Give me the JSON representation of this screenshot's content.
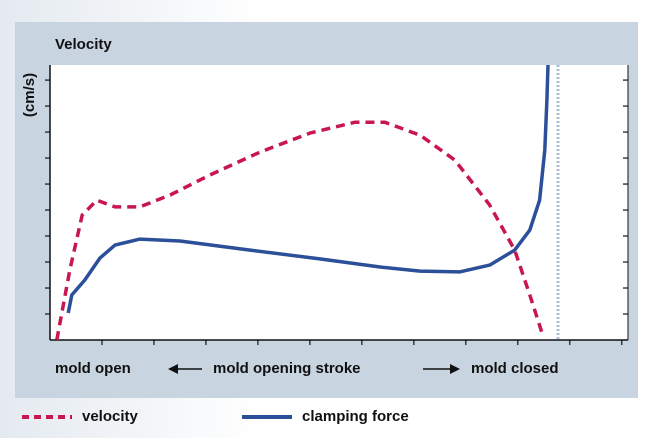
{
  "chart_data": {
    "type": "line",
    "ylabel_title": "Velocity",
    "ylabel": "(cm/s)",
    "xlabel_left": "mold open",
    "xlabel_center": "mold opening stroke",
    "xlabel_right": "mold closed",
    "xlim": [
      0,
      11.12
    ],
    "ylim": [
      0,
      10.58
    ],
    "xticks": [
      1,
      2,
      3,
      4,
      5,
      6,
      7,
      8,
      9,
      10,
      11
    ],
    "yticks": [
      1,
      2,
      3,
      4,
      5,
      6,
      7,
      8,
      9,
      10
    ],
    "series": [
      {
        "name": "velocity",
        "color": "#c8174f",
        "dashed": true,
        "x": [
          0.13,
          0.38,
          0.62,
          0.9,
          1.25,
          1.73,
          2.31,
          3.08,
          4.04,
          5.0,
          5.87,
          6.44,
          7.12,
          7.79,
          8.46,
          8.94,
          9.23,
          9.46
        ],
        "values": [
          0,
          2.69,
          4.81,
          5.38,
          5.12,
          5.12,
          5.58,
          6.35,
          7.23,
          7.96,
          8.38,
          8.38,
          7.88,
          6.92,
          5.19,
          3.46,
          1.73,
          0.31
        ]
      },
      {
        "name": "clamping force",
        "color": "#2b4f98",
        "dashed": false,
        "x": [
          0.35,
          0.42,
          0.67,
          0.96,
          1.25,
          1.73,
          2.5,
          3.85,
          5.19,
          6.35,
          7.12,
          7.88,
          8.46,
          8.94,
          9.23,
          9.42,
          9.52,
          9.56,
          9.58
        ],
        "values": [
          1.04,
          1.73,
          2.31,
          3.15,
          3.65,
          3.88,
          3.81,
          3.46,
          3.12,
          2.81,
          2.65,
          2.62,
          2.88,
          3.46,
          4.23,
          5.38,
          7.31,
          9.23,
          10.58
        ]
      }
    ]
  }
}
